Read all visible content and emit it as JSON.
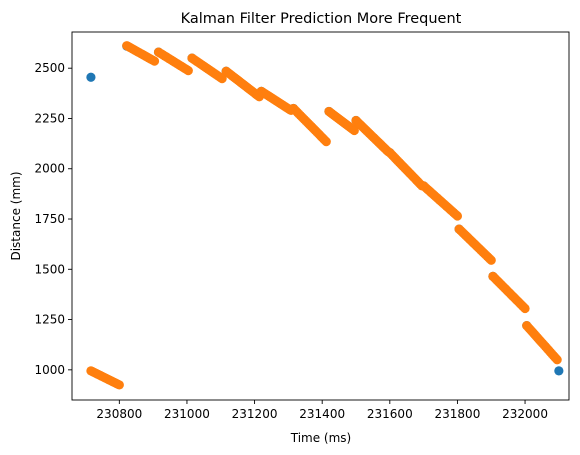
{
  "chart_data": {
    "type": "scatter",
    "title": "Kalman Filter Prediction More Frequent",
    "xlabel": "Time (ms)",
    "ylabel": "Distance (mm)",
    "xlim": [
      230660,
      232130
    ],
    "ylim": [
      850,
      2680
    ],
    "xticks": [
      230800,
      231000,
      231200,
      231400,
      231600,
      231800,
      232000
    ],
    "yticks": [
      1000,
      1250,
      1500,
      1750,
      2000,
      2250,
      2500
    ],
    "grid": false,
    "legend": "none",
    "series": [
      {
        "color": "#1f77b4",
        "points": [
          [
            230716,
            2455
          ],
          [
            230822,
            2610
          ],
          [
            230916,
            2580
          ],
          [
            231015,
            2550
          ],
          [
            231116,
            2485
          ],
          [
            231220,
            2385
          ],
          [
            231315,
            2300
          ],
          [
            231420,
            2285
          ],
          [
            231500,
            2240
          ],
          [
            231600,
            2080
          ],
          [
            231700,
            1915
          ],
          [
            231805,
            1700
          ],
          [
            231905,
            1465
          ],
          [
            232005,
            1220
          ],
          [
            232100,
            995
          ]
        ]
      },
      {
        "color": "#ff7f0e",
        "segments": [
          {
            "x": [
              230716,
              230800
            ],
            "y": [
              995,
              925
            ]
          },
          {
            "x": [
              230822,
              230904
            ],
            "y": [
              2612,
              2535
            ]
          },
          {
            "x": [
              230916,
              231004
            ],
            "y": [
              2580,
              2488
            ]
          },
          {
            "x": [
              231015,
              231104
            ],
            "y": [
              2550,
              2448
            ]
          },
          {
            "x": [
              231116,
              231214
            ],
            "y": [
              2485,
              2358
            ]
          },
          {
            "x": [
              231220,
              231308
            ],
            "y": [
              2385,
              2290
            ]
          },
          {
            "x": [
              231315,
              231412
            ],
            "y": [
              2300,
              2135
            ]
          },
          {
            "x": [
              231420,
              231495
            ],
            "y": [
              2285,
              2190
            ]
          },
          {
            "x": [
              231500,
              231595
            ],
            "y": [
              2240,
              2085
            ]
          },
          {
            "x": [
              231600,
              231695
            ],
            "y": [
              2080,
              1915
            ]
          },
          {
            "x": [
              231700,
              231800
            ],
            "y": [
              1915,
              1765
            ]
          },
          {
            "x": [
              231805,
              231900
            ],
            "y": [
              1700,
              1545
            ]
          },
          {
            "x": [
              231905,
              232000
            ],
            "y": [
              1465,
              1305
            ]
          },
          {
            "x": [
              232005,
              232095
            ],
            "y": [
              1220,
              1050
            ]
          }
        ]
      }
    ]
  }
}
